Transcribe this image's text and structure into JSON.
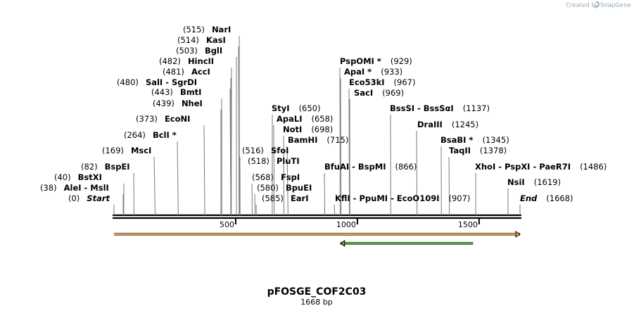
{
  "credit": {
    "prefix": "Created by",
    "brand": "SnapGene"
  },
  "map": {
    "title": "pFOSGE_COF2C03",
    "subtitle": "1668 bp",
    "length": 1668,
    "axis_ticks": [
      "500",
      "1000",
      "1500"
    ],
    "features": [
      {
        "name": "orange-feature",
        "start": 0,
        "end": 1668,
        "direction": "forward",
        "color": "#f5a53a"
      },
      {
        "name": "green-feature",
        "start": 930,
        "end": 1475,
        "direction": "reverse",
        "color": "#4ab024"
      }
    ],
    "sites": [
      {
        "pos_label": "(0)",
        "enzymes": [
          "Start"
        ],
        "italic": true
      },
      {
        "pos_label": "(38)",
        "enzymes": [
          "AleI",
          "MslI"
        ]
      },
      {
        "pos_label": "(40)",
        "enzymes": [
          "BstXI"
        ]
      },
      {
        "pos_label": "(82)",
        "enzymes": [
          "BspEI"
        ]
      },
      {
        "pos_label": "(169)",
        "enzymes": [
          "MscI"
        ]
      },
      {
        "pos_label": "(264)",
        "enzymes": [
          "BclI *"
        ]
      },
      {
        "pos_label": "(373)",
        "enzymes": [
          "EcoNI"
        ]
      },
      {
        "pos_label": "(439)",
        "enzymes": [
          "NheI"
        ]
      },
      {
        "pos_label": "(443)",
        "enzymes": [
          "BmtI"
        ]
      },
      {
        "pos_label": "(480)",
        "enzymes": [
          "SalI",
          "SgrDI"
        ]
      },
      {
        "pos_label": "(481)",
        "enzymes": [
          "AccI"
        ]
      },
      {
        "pos_label": "(482)",
        "enzymes": [
          "HincII"
        ]
      },
      {
        "pos_label": "(503)",
        "enzymes": [
          "BglI"
        ]
      },
      {
        "pos_label": "(514)",
        "enzymes": [
          "KasI"
        ]
      },
      {
        "pos_label": "(515)",
        "enzymes": [
          "NarI"
        ]
      },
      {
        "pos_label": "(516)",
        "enzymes": [
          "SfoI"
        ]
      },
      {
        "pos_label": "(518)",
        "enzymes": [
          "PluTI"
        ]
      },
      {
        "pos_label": "(568)",
        "enzymes": [
          "FspI"
        ]
      },
      {
        "pos_label": "(580)",
        "enzymes": [
          "BpuEI"
        ]
      },
      {
        "pos_label": "(585)",
        "enzymes": [
          "EarI"
        ]
      },
      {
        "pos_label": "(650)",
        "enzymes": [
          "StyI"
        ]
      },
      {
        "pos_label": "(658)",
        "enzymes": [
          "ApaLI"
        ]
      },
      {
        "pos_label": "(698)",
        "enzymes": [
          "NotI"
        ]
      },
      {
        "pos_label": "(715)",
        "enzymes": [
          "BamHI"
        ]
      },
      {
        "pos_label": "(866)",
        "enzymes": [
          "BfuAI",
          "BspMI"
        ]
      },
      {
        "pos_label": "(907)",
        "enzymes": [
          "KflI",
          "PpuMI",
          "EcoO109I"
        ]
      },
      {
        "pos_label": "(929)",
        "enzymes": [
          "PspOMI *"
        ]
      },
      {
        "pos_label": "(933)",
        "enzymes": [
          "ApaI *"
        ]
      },
      {
        "pos_label": "(967)",
        "enzymes": [
          "Eco53kI"
        ]
      },
      {
        "pos_label": "(969)",
        "enzymes": [
          "SacI"
        ]
      },
      {
        "pos_label": "(1137)",
        "enzymes": [
          "BssSI",
          "BssSαI"
        ]
      },
      {
        "pos_label": "(1245)",
        "enzymes": [
          "DraIII"
        ]
      },
      {
        "pos_label": "(1345)",
        "enzymes": [
          "BsaBI *"
        ]
      },
      {
        "pos_label": "(1378)",
        "enzymes": [
          "TaqII"
        ]
      },
      {
        "pos_label": "(1486)",
        "enzymes": [
          "XhoI",
          "PspXI",
          "PaeR7I"
        ]
      },
      {
        "pos_label": "(1619)",
        "enzymes": [
          "NsiI"
        ]
      },
      {
        "pos_label": "(1668)",
        "enzymes": [
          "End"
        ],
        "italic": true
      }
    ]
  }
}
